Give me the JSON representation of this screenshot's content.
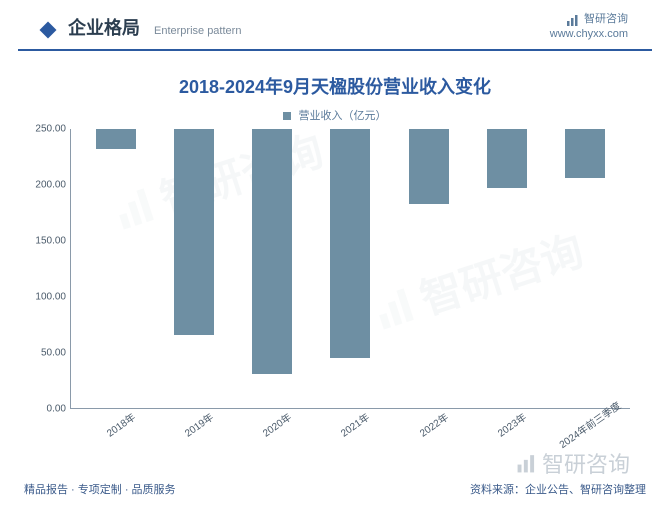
{
  "header": {
    "title_cn": "企业格局",
    "title_en": "Enterprise pattern",
    "brand": "智研咨询",
    "url": "www.chyxx.com"
  },
  "chart": {
    "type": "bar",
    "title": "2018-2024年9月天楹股份营业收入变化",
    "legend_label": "营业收入（亿元）",
    "categories": [
      "2018年",
      "2019年",
      "2020年",
      "2021年",
      "2022年",
      "2023年",
      "2024年前三季度"
    ],
    "values": [
      18,
      185,
      220,
      205,
      67,
      53,
      44
    ],
    "bar_color": "#6e8fa3",
    "ylim": [
      0,
      250
    ],
    "ytick_step": 50,
    "ytick_labels": [
      "0.00",
      "50.00",
      "100.00",
      "150.00",
      "200.00",
      "250.00"
    ],
    "axis_color": "#8a9aaa",
    "label_color": "#4a5a6a",
    "title_color": "#2c5aa0",
    "background_color": "#ffffff",
    "label_fontsize": 10,
    "title_fontsize": 18
  },
  "watermark_text": "智研咨询",
  "footer": {
    "left": "精品报告 · 专项定制 · 品质服务",
    "right": "资料来源：企业公告、智研咨询整理"
  }
}
